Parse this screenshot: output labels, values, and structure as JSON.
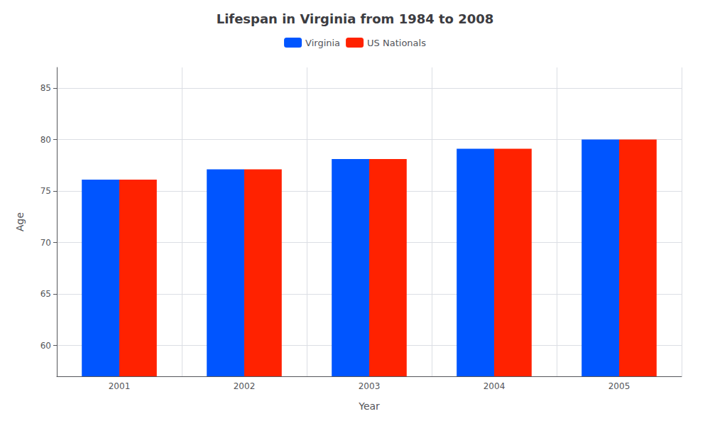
{
  "chart_data": {
    "type": "bar",
    "title": "Lifespan in Virginia from 1984 to 2008",
    "xlabel": "Year",
    "ylabel": "Age",
    "categories": [
      "2001",
      "2002",
      "2003",
      "2004",
      "2005"
    ],
    "series": [
      {
        "name": "Virginia",
        "color": "#0055ff",
        "values": [
          76.1,
          77.1,
          78.1,
          79.1,
          80.0
        ]
      },
      {
        "name": "US Nationals",
        "color": "#ff2200",
        "values": [
          76.1,
          77.1,
          78.1,
          79.1,
          80.0
        ]
      }
    ],
    "ylim": [
      57,
      87
    ],
    "yticks": [
      60,
      65,
      70,
      75,
      80,
      85
    ],
    "grid": true,
    "legend": "top"
  }
}
